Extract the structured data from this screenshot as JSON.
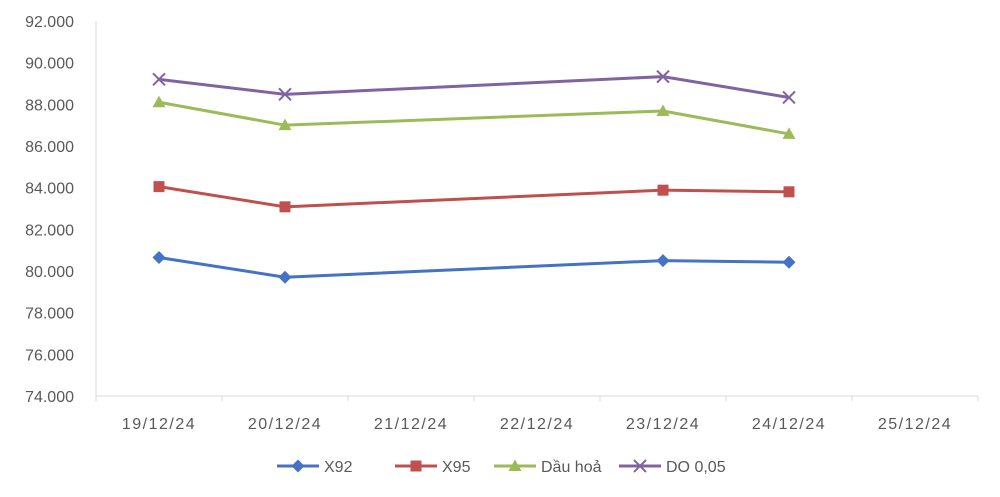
{
  "chart_data": {
    "type": "line",
    "title": "",
    "xlabel": "",
    "ylabel": "",
    "categories": [
      "19/12/24",
      "20/12/24",
      "21/12/24",
      "22/12/24",
      "23/12/24",
      "24/12/24",
      "25/12/24"
    ],
    "ylim": [
      74000,
      92000
    ],
    "yticks": [
      74000,
      76000,
      78000,
      80000,
      82000,
      84000,
      86000,
      88000,
      90000,
      92000
    ],
    "ytick_labels": [
      "74.000",
      "76.000",
      "78.000",
      "80.000",
      "82.000",
      "84.000",
      "86.000",
      "88.000",
      "90.000",
      "92.000"
    ],
    "grid": false,
    "legend_position": "bottom",
    "series": [
      {
        "name": "X92",
        "color": "#4472C4",
        "marker": "diamond",
        "x": [
          "19/12/24",
          "20/12/24",
          "23/12/24",
          "24/12/24"
        ],
        "values": [
          80650,
          79700,
          80500,
          80420
        ]
      },
      {
        "name": "X95",
        "color": "#C0504D",
        "marker": "square",
        "x": [
          "19/12/24",
          "20/12/24",
          "23/12/24",
          "24/12/24"
        ],
        "values": [
          84050,
          83080,
          83880,
          83800
        ]
      },
      {
        "name": "Dầu hoả",
        "color": "#9BBB59",
        "marker": "triangle",
        "x": [
          "19/12/24",
          "20/12/24",
          "23/12/24",
          "24/12/24"
        ],
        "values": [
          88100,
          87000,
          87680,
          86580
        ]
      },
      {
        "name": "DO 0,05",
        "color": "#8064A2",
        "marker": "x",
        "x": [
          "19/12/24",
          "20/12/24",
          "23/12/24",
          "24/12/24"
        ],
        "values": [
          89200,
          88480,
          89330,
          88330
        ]
      }
    ]
  }
}
